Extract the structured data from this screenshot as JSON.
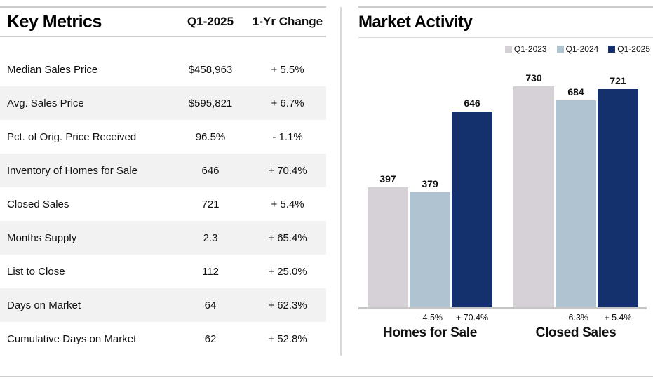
{
  "key_metrics": {
    "title": "Key Metrics",
    "columns": [
      "Q1-2025",
      "1-Yr Change"
    ],
    "rows": [
      {
        "label": "Median Sales Price",
        "value": "$458,963",
        "change": "+ 5.5%"
      },
      {
        "label": "Avg. Sales Price",
        "value": "$595,821",
        "change": "+ 6.7%"
      },
      {
        "label": "Pct. of Orig. Price Received",
        "value": "96.5%",
        "change": "- 1.1%"
      },
      {
        "label": "Inventory of Homes for Sale",
        "value": "646",
        "change": "+ 70.4%"
      },
      {
        "label": "Closed Sales",
        "value": "721",
        "change": "+ 5.4%"
      },
      {
        "label": "Months Supply",
        "value": "2.3",
        "change": "+ 65.4%"
      },
      {
        "label": "List to Close",
        "value": "112",
        "change": "+ 25.0%"
      },
      {
        "label": "Days on Market",
        "value": "64",
        "change": "+ 62.3%"
      },
      {
        "label": "Cumulative Days on Market",
        "value": "62",
        "change": "+ 52.8%"
      }
    ]
  },
  "market_activity": {
    "title": "Market Activity",
    "legend": [
      {
        "label": "Q1-2023",
        "color": "#d5d1d6"
      },
      {
        "label": "Q1-2024",
        "color": "#b0c3d1"
      },
      {
        "label": "Q1-2025",
        "color": "#14316e"
      }
    ]
  },
  "chart_data": {
    "type": "bar",
    "categories": [
      "Homes for Sale",
      "Closed Sales"
    ],
    "series": [
      {
        "name": "Q1-2023",
        "color": "#d5d1d6",
        "values": [
          397,
          730
        ]
      },
      {
        "name": "Q1-2024",
        "color": "#b0c3d1",
        "values": [
          379,
          684
        ]
      },
      {
        "name": "Q1-2025",
        "color": "#14316e",
        "values": [
          646,
          721
        ]
      }
    ],
    "change_rows": [
      [
        "",
        "- 4.5%",
        "+ 70.4%"
      ],
      [
        "",
        "- 6.3%",
        "+ 5.4%"
      ]
    ],
    "ylim": [
      0,
      760
    ],
    "grid": false,
    "legend_position": "top-right",
    "bar_value_labels": true
  }
}
